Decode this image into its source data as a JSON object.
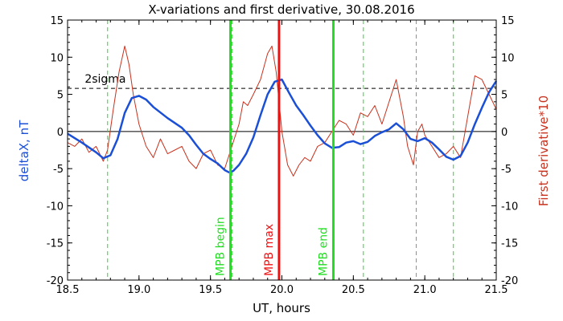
{
  "chart_data": {
    "type": "line",
    "title": "X-variations and first derivative, 30.08.2016",
    "xlabel": "UT, hours",
    "ylabel_left": "deltaX, nT",
    "ylabel_right": "First derivative*10",
    "xlim": [
      18.5,
      21.5
    ],
    "ylim": [
      -20,
      15
    ],
    "xticks": [
      "18.5",
      "19.0",
      "19.5",
      "20.0",
      "20.5",
      "21.0",
      "21.5"
    ],
    "yticks": [
      "15",
      "10",
      "5",
      "0",
      "-5",
      "-10",
      "-15",
      "-20"
    ],
    "threshold": {
      "label": "2sigma",
      "value": 5.8
    },
    "colors": {
      "deltaX": "#1a4fd6",
      "derivative": "#c8321e",
      "mpb_max": "#ee1111",
      "mpb_edge": "#22dd22",
      "dashed_green": "#22dd22"
    },
    "markers": [
      {
        "label": "MPB begin",
        "x": 19.64,
        "color": "#22dd22"
      },
      {
        "label": "MPB max",
        "x": 19.98,
        "color": "#ee1111"
      },
      {
        "label": "MPB end",
        "x": 20.36,
        "color": "#22dd22"
      }
    ],
    "dashed_lines_x": [
      18.78,
      19.65,
      20.57,
      20.94,
      21.2
    ],
    "series": [
      {
        "name": "deltaX",
        "x": [
          18.5,
          18.6,
          18.7,
          18.75,
          18.8,
          18.85,
          18.9,
          18.95,
          19.0,
          19.05,
          19.1,
          19.2,
          19.3,
          19.35,
          19.4,
          19.45,
          19.5,
          19.55,
          19.6,
          19.63,
          19.66,
          19.7,
          19.75,
          19.8,
          19.85,
          19.9,
          19.95,
          20.0,
          20.05,
          20.1,
          20.15,
          20.2,
          20.25,
          20.3,
          20.35,
          20.4,
          20.45,
          20.5,
          20.55,
          20.6,
          20.65,
          20.7,
          20.75,
          20.8,
          20.85,
          20.9,
          20.95,
          21.0,
          21.05,
          21.1,
          21.15,
          21.2,
          21.25,
          21.3,
          21.35,
          21.4,
          21.45,
          21.5
        ],
        "y": [
          -0.3,
          -1.5,
          -2.8,
          -3.6,
          -3.2,
          -1.0,
          2.5,
          4.5,
          4.8,
          4.3,
          3.3,
          1.8,
          0.5,
          -0.5,
          -1.8,
          -3.0,
          -3.7,
          -4.3,
          -5.2,
          -5.5,
          -5.3,
          -4.5,
          -3.0,
          -0.8,
          2.2,
          5.0,
          6.7,
          7.0,
          5.2,
          3.5,
          2.2,
          0.8,
          -0.5,
          -1.6,
          -2.2,
          -2.1,
          -1.5,
          -1.3,
          -1.7,
          -1.4,
          -0.6,
          -0.1,
          0.3,
          1.1,
          0.3,
          -1.0,
          -1.3,
          -0.9,
          -1.5,
          -2.4,
          -3.4,
          -3.8,
          -3.3,
          -1.5,
          1.0,
          3.2,
          5.3,
          6.8
        ]
      },
      {
        "name": "First derivative*10",
        "x": [
          18.5,
          18.55,
          18.6,
          18.65,
          18.7,
          18.75,
          18.78,
          18.82,
          18.86,
          18.9,
          18.93,
          18.96,
          19.0,
          19.05,
          19.1,
          19.15,
          19.2,
          19.25,
          19.3,
          19.35,
          19.4,
          19.45,
          19.5,
          19.55,
          19.6,
          19.65,
          19.7,
          19.73,
          19.76,
          19.8,
          19.85,
          19.9,
          19.93,
          19.96,
          20.0,
          20.04,
          20.08,
          20.12,
          20.16,
          20.2,
          20.25,
          20.3,
          20.35,
          20.4,
          20.45,
          20.5,
          20.55,
          20.6,
          20.65,
          20.7,
          20.75,
          20.8,
          20.85,
          20.88,
          20.92,
          20.95,
          20.98,
          21.0,
          21.05,
          21.1,
          21.15,
          21.2,
          21.25,
          21.3,
          21.35,
          21.4,
          21.45,
          21.5
        ],
        "y": [
          -1.5,
          -2.0,
          -1.0,
          -2.8,
          -2.0,
          -4.0,
          -2.5,
          3.0,
          8.0,
          11.5,
          9.0,
          5.0,
          1.0,
          -2.0,
          -3.5,
          -1.0,
          -3.0,
          -2.5,
          -2.0,
          -4.0,
          -5.0,
          -3.0,
          -2.5,
          -4.5,
          -5.0,
          -2.0,
          1.0,
          4.0,
          3.5,
          5.0,
          7.0,
          10.5,
          11.5,
          8.0,
          0.0,
          -4.5,
          -6.0,
          -4.5,
          -3.5,
          -4.0,
          -2.0,
          -1.5,
          0.0,
          1.5,
          1.0,
          -0.5,
          2.5,
          2.0,
          3.5,
          1.0,
          4.0,
          7.0,
          2.0,
          -2.0,
          -4.5,
          0.0,
          1.0,
          -0.5,
          -2.0,
          -3.5,
          -3.0,
          -2.0,
          -3.5,
          2.0,
          7.5,
          7.0,
          5.0,
          3.0
        ]
      }
    ]
  }
}
